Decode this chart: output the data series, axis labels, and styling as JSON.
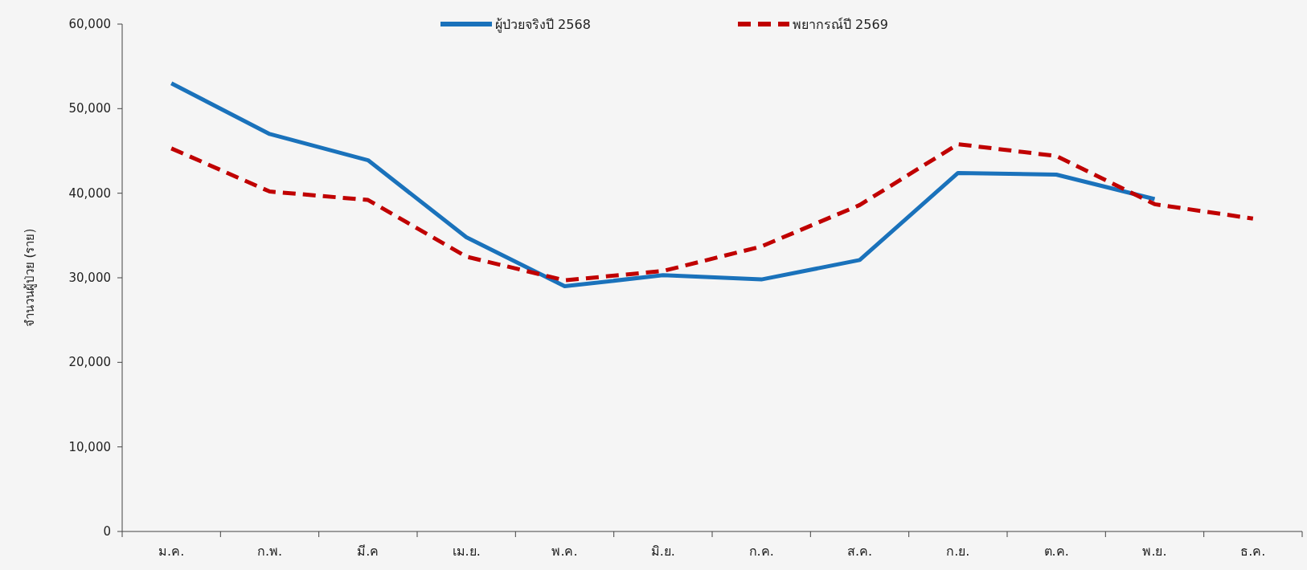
{
  "chart_data": {
    "type": "line",
    "ylabel": "จำนวนผู้ป่วย (ราย)",
    "categories": [
      "ม.ค.",
      "ก.พ.",
      "มี.ค",
      "เม.ย.",
      "พ.ค.",
      "มิ.ย.",
      "ก.ค.",
      "ส.ค.",
      "ก.ย.",
      "ต.ค.",
      "พ.ย.",
      "ธ.ค."
    ],
    "series": [
      {
        "name": "ผู้ป่วยจริงปี 2568",
        "color": "#1a72bb",
        "line_style": "solid",
        "values": [
          53000,
          47000,
          43900,
          34800,
          29000,
          30300,
          29800,
          32100,
          42400,
          42200,
          39300,
          null
        ]
      },
      {
        "name": "พยากรณ์ปี 2569",
        "color": "#c00000",
        "line_style": "dashed",
        "values": [
          45300,
          40200,
          39200,
          32500,
          29700,
          30800,
          33700,
          38600,
          45800,
          44400,
          38700,
          37000
        ]
      }
    ],
    "ylim": [
      0,
      60000
    ],
    "yticks": [
      {
        "value": 0,
        "label": "0"
      },
      {
        "value": 10000,
        "label": "10,000"
      },
      {
        "value": 20000,
        "label": "20,000"
      },
      {
        "value": 30000,
        "label": "30,000"
      },
      {
        "value": 40000,
        "label": "40,000"
      },
      {
        "value": 50000,
        "label": "50,000"
      },
      {
        "value": 60000,
        "label": "60,000"
      }
    ],
    "legend": "top",
    "marker": "none"
  }
}
